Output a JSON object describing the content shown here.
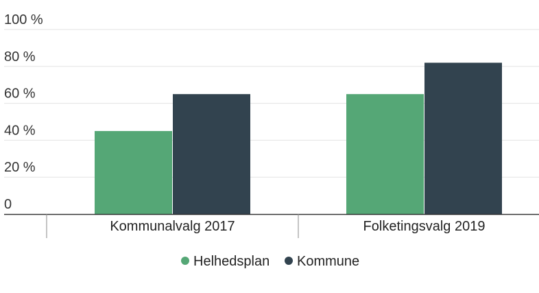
{
  "chart_data": {
    "type": "bar",
    "title": "",
    "xlabel": "",
    "ylabel": "",
    "categories": [
      "Kommunalvalg 2017",
      "Folketingsvalg 2019"
    ],
    "series": [
      {
        "name": "Helhedsplan",
        "values": [
          45,
          65
        ],
        "color": "#55a776"
      },
      {
        "name": "Kommune",
        "values": [
          65,
          82
        ],
        "color": "#32434f"
      }
    ],
    "ylim": [
      0,
      100
    ],
    "yticks": [
      0,
      20,
      40,
      60,
      80,
      100
    ],
    "ytick_labels": [
      "0",
      "20 %",
      "40 %",
      "60 %",
      "80 %",
      "100 %"
    ],
    "grid": true,
    "legend_position": "bottom-center"
  }
}
